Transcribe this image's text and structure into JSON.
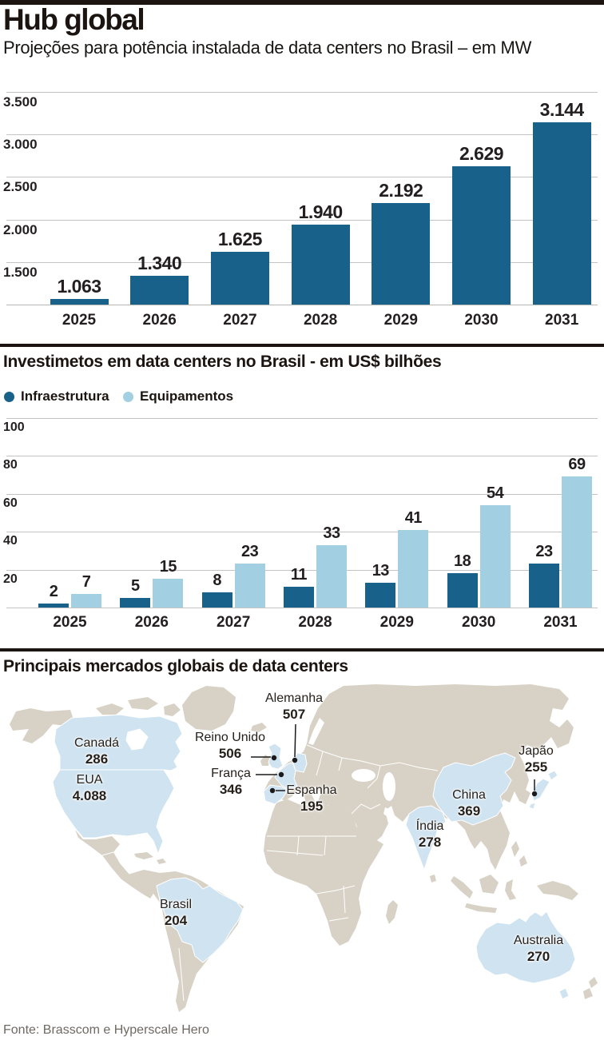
{
  "header": {
    "title": "Hub global",
    "subtitle": "Projeções para potência instalada de data centers no Brasil – em MW"
  },
  "colors": {
    "dark_blue": "#17618a",
    "light_blue": "#a3cfe3",
    "land": "#d8d2c6",
    "highlight": "#cfe3f0",
    "ink": "#1b1410"
  },
  "chart_data": [
    {
      "type": "bar",
      "title": "Projeções para potência instalada de data centers no Brasil – em MW",
      "categories": [
        "2025",
        "2026",
        "2027",
        "2028",
        "2029",
        "2030",
        "2031"
      ],
      "values": [
        1063,
        1340,
        1625,
        1940,
        2192,
        2629,
        3144
      ],
      "value_labels": [
        "1.063",
        "1.340",
        "1.625",
        "1.940",
        "2.192",
        "2.629",
        "3.144"
      ],
      "ylabel": "MW",
      "ylim": [
        1000,
        3600
      ],
      "yticks": [
        {
          "v": 1500,
          "label": "1.500"
        },
        {
          "v": 2000,
          "label": "2.000"
        },
        {
          "v": 2500,
          "label": "2.500"
        },
        {
          "v": 3000,
          "label": "3.000"
        },
        {
          "v": 3500,
          "label": "3.500"
        }
      ],
      "bar_color": "#17618a",
      "grid": true,
      "legend": "none"
    },
    {
      "type": "bar",
      "grouped": true,
      "title": "Investimetos em data centers no Brasil - em US$ bilhões",
      "categories": [
        "2025",
        "2026",
        "2027",
        "2028",
        "2029",
        "2030",
        "2031"
      ],
      "series": [
        {
          "name": "Infraestrutura",
          "color": "#17618a",
          "values": [
            2,
            5,
            8,
            11,
            13,
            18,
            23
          ]
        },
        {
          "name": "Equipamentos",
          "color": "#a3cfe3",
          "values": [
            7,
            15,
            23,
            33,
            41,
            54,
            69
          ]
        }
      ],
      "ylim": [
        0,
        100
      ],
      "yticks": [
        20,
        40,
        60,
        80,
        100
      ],
      "grid": true,
      "legend": "top-left"
    },
    {
      "type": "map",
      "title": "Principais mercados globais de data centers",
      "markets": [
        {
          "name": "Canadá",
          "value": "286"
        },
        {
          "name": "EUA",
          "value": "4.088"
        },
        {
          "name": "Reino Unido",
          "value": "506"
        },
        {
          "name": "França",
          "value": "346"
        },
        {
          "name": "Alemanha",
          "value": "507"
        },
        {
          "name": "Espanha",
          "value": "195"
        },
        {
          "name": "Japão",
          "value": "255"
        },
        {
          "name": "China",
          "value": "369"
        },
        {
          "name": "Índia",
          "value": "278"
        },
        {
          "name": "Brasil",
          "value": "204"
        },
        {
          "name": "Australia",
          "value": "270"
        }
      ]
    }
  ],
  "footer": {
    "source": "Fonte: Brasscom e Hyperscale Hero"
  }
}
